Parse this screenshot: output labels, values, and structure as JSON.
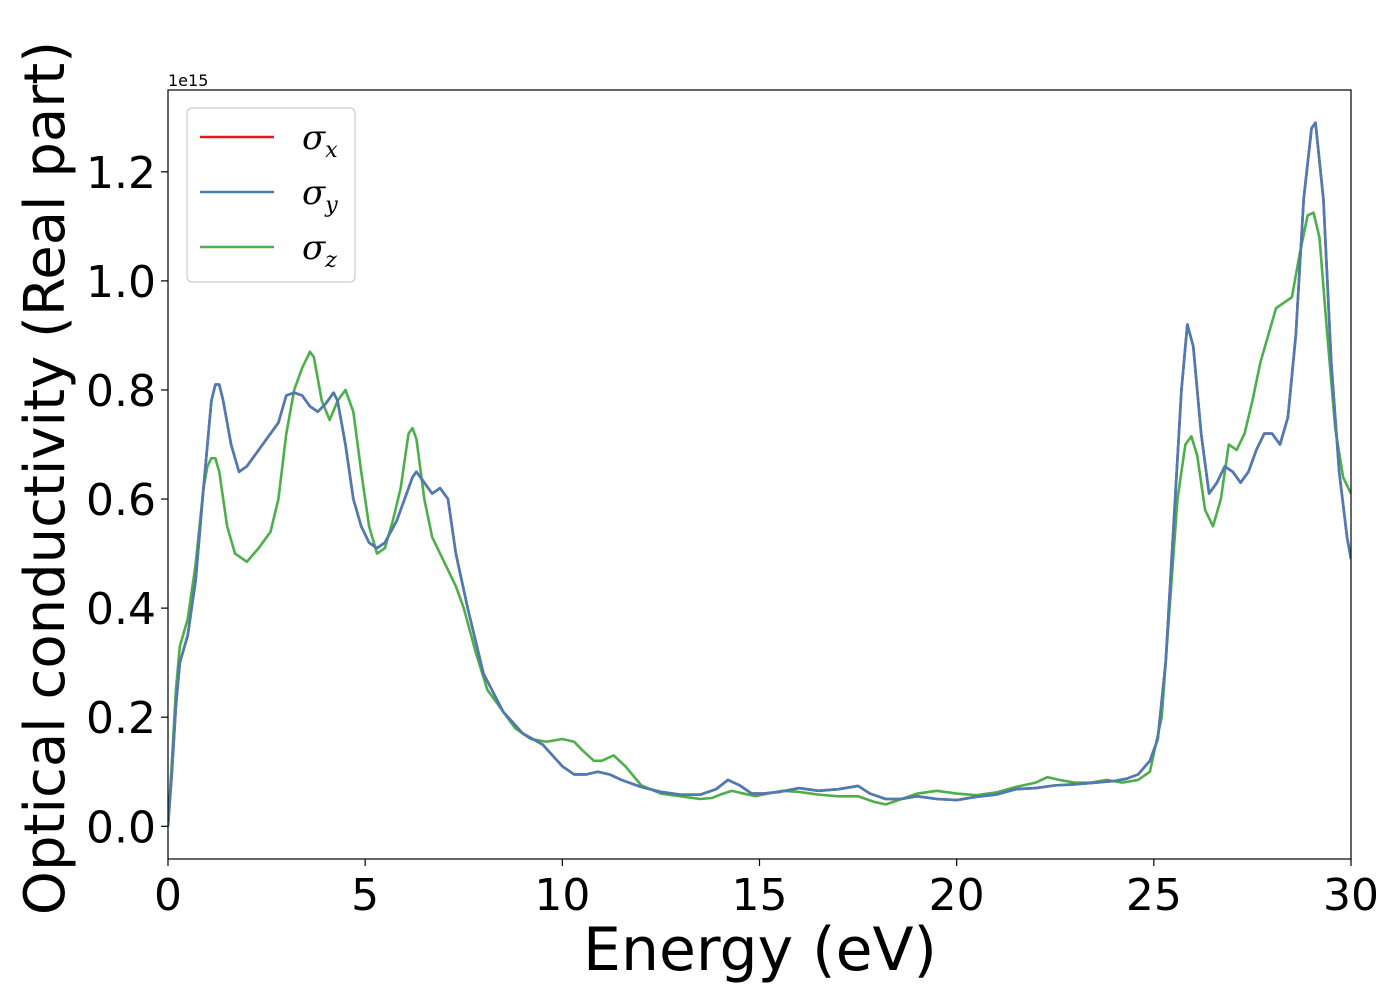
{
  "chart_data": {
    "type": "line",
    "xlabel": "Energy (eV)",
    "ylabel": "Optical conductivity (Real part)",
    "y_offset_label": "1e15",
    "xlim": [
      0,
      30
    ],
    "ylim": [
      -0.06,
      1.35
    ],
    "xticks": [
      0,
      5,
      10,
      15,
      20,
      25,
      30
    ],
    "xtick_labels": [
      "0",
      "5",
      "10",
      "15",
      "20",
      "25",
      "30"
    ],
    "yticks": [
      0.0,
      0.2,
      0.4,
      0.6,
      0.8,
      1.0,
      1.2
    ],
    "ytick_labels": [
      "0.0",
      "0.2",
      "0.4",
      "0.6",
      "0.8",
      "1.0",
      "1.2"
    ],
    "grid": false,
    "legend_position": "top-left",
    "series": [
      {
        "name": "σ",
        "subscript": "x",
        "color": "#e41a1c",
        "x": [
          0,
          0.1,
          0.2,
          0.3,
          0.5,
          0.7,
          0.9,
          1.1,
          1.2,
          1.3,
          1.4,
          1.5,
          1.6,
          1.8,
          2.0,
          2.2,
          2.5,
          2.8,
          3.0,
          3.2,
          3.4,
          3.6,
          3.8,
          4.0,
          4.2,
          4.3,
          4.5,
          4.7,
          4.9,
          5.1,
          5.3,
          5.5,
          5.8,
          6.0,
          6.2,
          6.3,
          6.5,
          6.7,
          6.9,
          7.1,
          7.3,
          7.6,
          8.0,
          8.5,
          9.0,
          9.5,
          10.0,
          10.3,
          10.6,
          10.9,
          11.2,
          11.5,
          12.0,
          12.5,
          13.0,
          13.5,
          13.9,
          14.2,
          14.5,
          14.8,
          15.1,
          15.5,
          16.0,
          16.5,
          17.0,
          17.5,
          17.8,
          18.2,
          18.6,
          19.0,
          19.5,
          20.0,
          20.5,
          21.0,
          21.5,
          22.0,
          22.5,
          23.0,
          23.5,
          24.0,
          24.3,
          24.6,
          24.9,
          25.1,
          25.3,
          25.5,
          25.7,
          25.85,
          26.0,
          26.2,
          26.4,
          26.6,
          26.8,
          27.0,
          27.2,
          27.4,
          27.6,
          27.8,
          28.0,
          28.2,
          28.4,
          28.6,
          28.8,
          29.0,
          29.1,
          29.3,
          29.5,
          29.7,
          29.9,
          30.0
        ],
        "y": [
          0.0,
          0.1,
          0.22,
          0.3,
          0.35,
          0.45,
          0.62,
          0.78,
          0.81,
          0.81,
          0.78,
          0.74,
          0.7,
          0.65,
          0.66,
          0.68,
          0.71,
          0.74,
          0.79,
          0.795,
          0.79,
          0.77,
          0.76,
          0.775,
          0.795,
          0.78,
          0.7,
          0.6,
          0.55,
          0.52,
          0.51,
          0.52,
          0.56,
          0.6,
          0.64,
          0.65,
          0.63,
          0.61,
          0.62,
          0.6,
          0.5,
          0.4,
          0.28,
          0.21,
          0.17,
          0.15,
          0.11,
          0.095,
          0.095,
          0.1,
          0.095,
          0.085,
          0.072,
          0.063,
          0.058,
          0.058,
          0.068,
          0.085,
          0.075,
          0.06,
          0.06,
          0.063,
          0.07,
          0.065,
          0.068,
          0.074,
          0.06,
          0.05,
          0.05,
          0.055,
          0.05,
          0.048,
          0.054,
          0.058,
          0.068,
          0.07,
          0.075,
          0.077,
          0.08,
          0.083,
          0.087,
          0.095,
          0.12,
          0.16,
          0.3,
          0.55,
          0.8,
          0.92,
          0.88,
          0.72,
          0.61,
          0.63,
          0.66,
          0.65,
          0.63,
          0.65,
          0.69,
          0.72,
          0.72,
          0.7,
          0.75,
          0.9,
          1.15,
          1.28,
          1.29,
          1.15,
          0.85,
          0.65,
          0.53,
          0.49
        ]
      },
      {
        "name": "σ",
        "subscript": "y",
        "color": "#4a7cb5",
        "x": [
          0,
          0.1,
          0.2,
          0.3,
          0.5,
          0.7,
          0.9,
          1.1,
          1.2,
          1.3,
          1.4,
          1.5,
          1.6,
          1.8,
          2.0,
          2.2,
          2.5,
          2.8,
          3.0,
          3.2,
          3.4,
          3.6,
          3.8,
          4.0,
          4.2,
          4.3,
          4.5,
          4.7,
          4.9,
          5.1,
          5.3,
          5.5,
          5.8,
          6.0,
          6.2,
          6.3,
          6.5,
          6.7,
          6.9,
          7.1,
          7.3,
          7.6,
          8.0,
          8.5,
          9.0,
          9.5,
          10.0,
          10.3,
          10.6,
          10.9,
          11.2,
          11.5,
          12.0,
          12.5,
          13.0,
          13.5,
          13.9,
          14.2,
          14.5,
          14.8,
          15.1,
          15.5,
          16.0,
          16.5,
          17.0,
          17.5,
          17.8,
          18.2,
          18.6,
          19.0,
          19.5,
          20.0,
          20.5,
          21.0,
          21.5,
          22.0,
          22.5,
          23.0,
          23.5,
          24.0,
          24.3,
          24.6,
          24.9,
          25.1,
          25.3,
          25.5,
          25.7,
          25.85,
          26.0,
          26.2,
          26.4,
          26.6,
          26.8,
          27.0,
          27.2,
          27.4,
          27.6,
          27.8,
          28.0,
          28.2,
          28.4,
          28.6,
          28.8,
          29.0,
          29.1,
          29.3,
          29.5,
          29.7,
          29.9,
          30.0
        ],
        "y": [
          0.0,
          0.1,
          0.22,
          0.3,
          0.35,
          0.45,
          0.62,
          0.78,
          0.81,
          0.81,
          0.78,
          0.74,
          0.7,
          0.65,
          0.66,
          0.68,
          0.71,
          0.74,
          0.79,
          0.795,
          0.79,
          0.77,
          0.76,
          0.775,
          0.795,
          0.78,
          0.7,
          0.6,
          0.55,
          0.52,
          0.51,
          0.52,
          0.56,
          0.6,
          0.64,
          0.65,
          0.63,
          0.61,
          0.62,
          0.6,
          0.5,
          0.4,
          0.28,
          0.21,
          0.17,
          0.15,
          0.11,
          0.095,
          0.095,
          0.1,
          0.095,
          0.085,
          0.072,
          0.063,
          0.058,
          0.058,
          0.068,
          0.085,
          0.075,
          0.06,
          0.06,
          0.063,
          0.07,
          0.065,
          0.068,
          0.074,
          0.06,
          0.05,
          0.05,
          0.055,
          0.05,
          0.048,
          0.054,
          0.058,
          0.068,
          0.07,
          0.075,
          0.077,
          0.08,
          0.083,
          0.087,
          0.095,
          0.12,
          0.16,
          0.3,
          0.55,
          0.8,
          0.92,
          0.88,
          0.72,
          0.61,
          0.63,
          0.66,
          0.65,
          0.63,
          0.65,
          0.69,
          0.72,
          0.72,
          0.7,
          0.75,
          0.9,
          1.15,
          1.28,
          1.29,
          1.15,
          0.85,
          0.65,
          0.53,
          0.49
        ]
      },
      {
        "name": "σ",
        "subscript": "z",
        "color": "#4daf4a",
        "x": [
          0,
          0.1,
          0.2,
          0.3,
          0.5,
          0.7,
          0.9,
          1.0,
          1.1,
          1.2,
          1.3,
          1.5,
          1.7,
          2.0,
          2.3,
          2.6,
          2.8,
          3.0,
          3.2,
          3.4,
          3.6,
          3.7,
          3.9,
          4.1,
          4.3,
          4.5,
          4.7,
          4.9,
          5.1,
          5.3,
          5.5,
          5.7,
          5.9,
          6.1,
          6.2,
          6.3,
          6.5,
          6.7,
          6.9,
          7.1,
          7.3,
          7.5,
          7.8,
          8.1,
          8.4,
          8.8,
          9.2,
          9.6,
          10.0,
          10.3,
          10.5,
          10.8,
          11.0,
          11.3,
          11.6,
          12.0,
          12.5,
          13.0,
          13.5,
          13.8,
          14.0,
          14.3,
          14.6,
          14.9,
          15.2,
          15.6,
          16.0,
          16.5,
          17.0,
          17.5,
          17.9,
          18.2,
          18.6,
          19.0,
          19.5,
          20.0,
          20.5,
          21.0,
          21.5,
          22.0,
          22.3,
          22.6,
          23.0,
          23.4,
          23.8,
          24.2,
          24.6,
          24.9,
          25.2,
          25.4,
          25.6,
          25.8,
          25.95,
          26.1,
          26.3,
          26.5,
          26.7,
          26.9,
          27.1,
          27.3,
          27.5,
          27.7,
          27.9,
          28.1,
          28.3,
          28.5,
          28.7,
          28.9,
          29.05,
          29.2,
          29.4,
          29.6,
          29.8,
          30.0
        ],
        "y": [
          0.0,
          0.12,
          0.25,
          0.33,
          0.38,
          0.48,
          0.62,
          0.66,
          0.675,
          0.675,
          0.65,
          0.55,
          0.5,
          0.485,
          0.51,
          0.54,
          0.6,
          0.72,
          0.8,
          0.84,
          0.87,
          0.86,
          0.78,
          0.745,
          0.78,
          0.8,
          0.76,
          0.65,
          0.55,
          0.5,
          0.51,
          0.56,
          0.62,
          0.72,
          0.73,
          0.71,
          0.6,
          0.53,
          0.5,
          0.47,
          0.44,
          0.4,
          0.32,
          0.25,
          0.22,
          0.18,
          0.16,
          0.155,
          0.16,
          0.155,
          0.14,
          0.12,
          0.12,
          0.13,
          0.11,
          0.075,
          0.06,
          0.055,
          0.05,
          0.052,
          0.058,
          0.065,
          0.06,
          0.055,
          0.06,
          0.065,
          0.063,
          0.058,
          0.055,
          0.055,
          0.045,
          0.04,
          0.05,
          0.06,
          0.065,
          0.06,
          0.057,
          0.062,
          0.072,
          0.08,
          0.09,
          0.085,
          0.08,
          0.08,
          0.085,
          0.08,
          0.085,
          0.1,
          0.2,
          0.4,
          0.6,
          0.7,
          0.715,
          0.68,
          0.58,
          0.55,
          0.6,
          0.7,
          0.69,
          0.72,
          0.78,
          0.85,
          0.9,
          0.95,
          0.96,
          0.97,
          1.05,
          1.12,
          1.125,
          1.08,
          0.9,
          0.73,
          0.64,
          0.61
        ]
      }
    ]
  }
}
